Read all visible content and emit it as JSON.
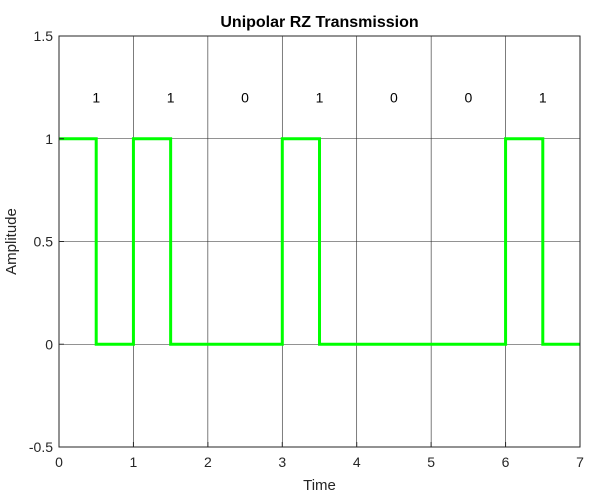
{
  "chart_data": {
    "type": "line",
    "title": "Unipolar RZ Transmission",
    "xlabel": "Time",
    "ylabel": "Amplitude",
    "xlim": [
      0,
      7
    ],
    "ylim": [
      -0.5,
      1.5
    ],
    "x_ticks": [
      0,
      1,
      2,
      3,
      4,
      5,
      6,
      7
    ],
    "y_ticks": [
      -0.5,
      0,
      0.5,
      1,
      1.5
    ],
    "x_tick_labels": [
      "0",
      "1",
      "2",
      "3",
      "4",
      "5",
      "6",
      "7"
    ],
    "y_tick_labels": [
      "-0.5",
      "0",
      "0.5",
      "1",
      "1.5"
    ],
    "grid": true,
    "bits": [
      "1",
      "1",
      "0",
      "1",
      "0",
      "0",
      "1"
    ],
    "bit_label_y": 1.2,
    "series": [
      {
        "color": "#00ff00",
        "x": [
          0,
          0.5,
          0.5,
          1,
          1,
          1.5,
          1.5,
          3,
          3,
          3.5,
          3.5,
          6,
          6,
          6.5,
          6.5,
          7
        ],
        "y": [
          1,
          1,
          0,
          0,
          1,
          1,
          0,
          0,
          1,
          1,
          0,
          0,
          1,
          1,
          0,
          0
        ]
      }
    ]
  }
}
